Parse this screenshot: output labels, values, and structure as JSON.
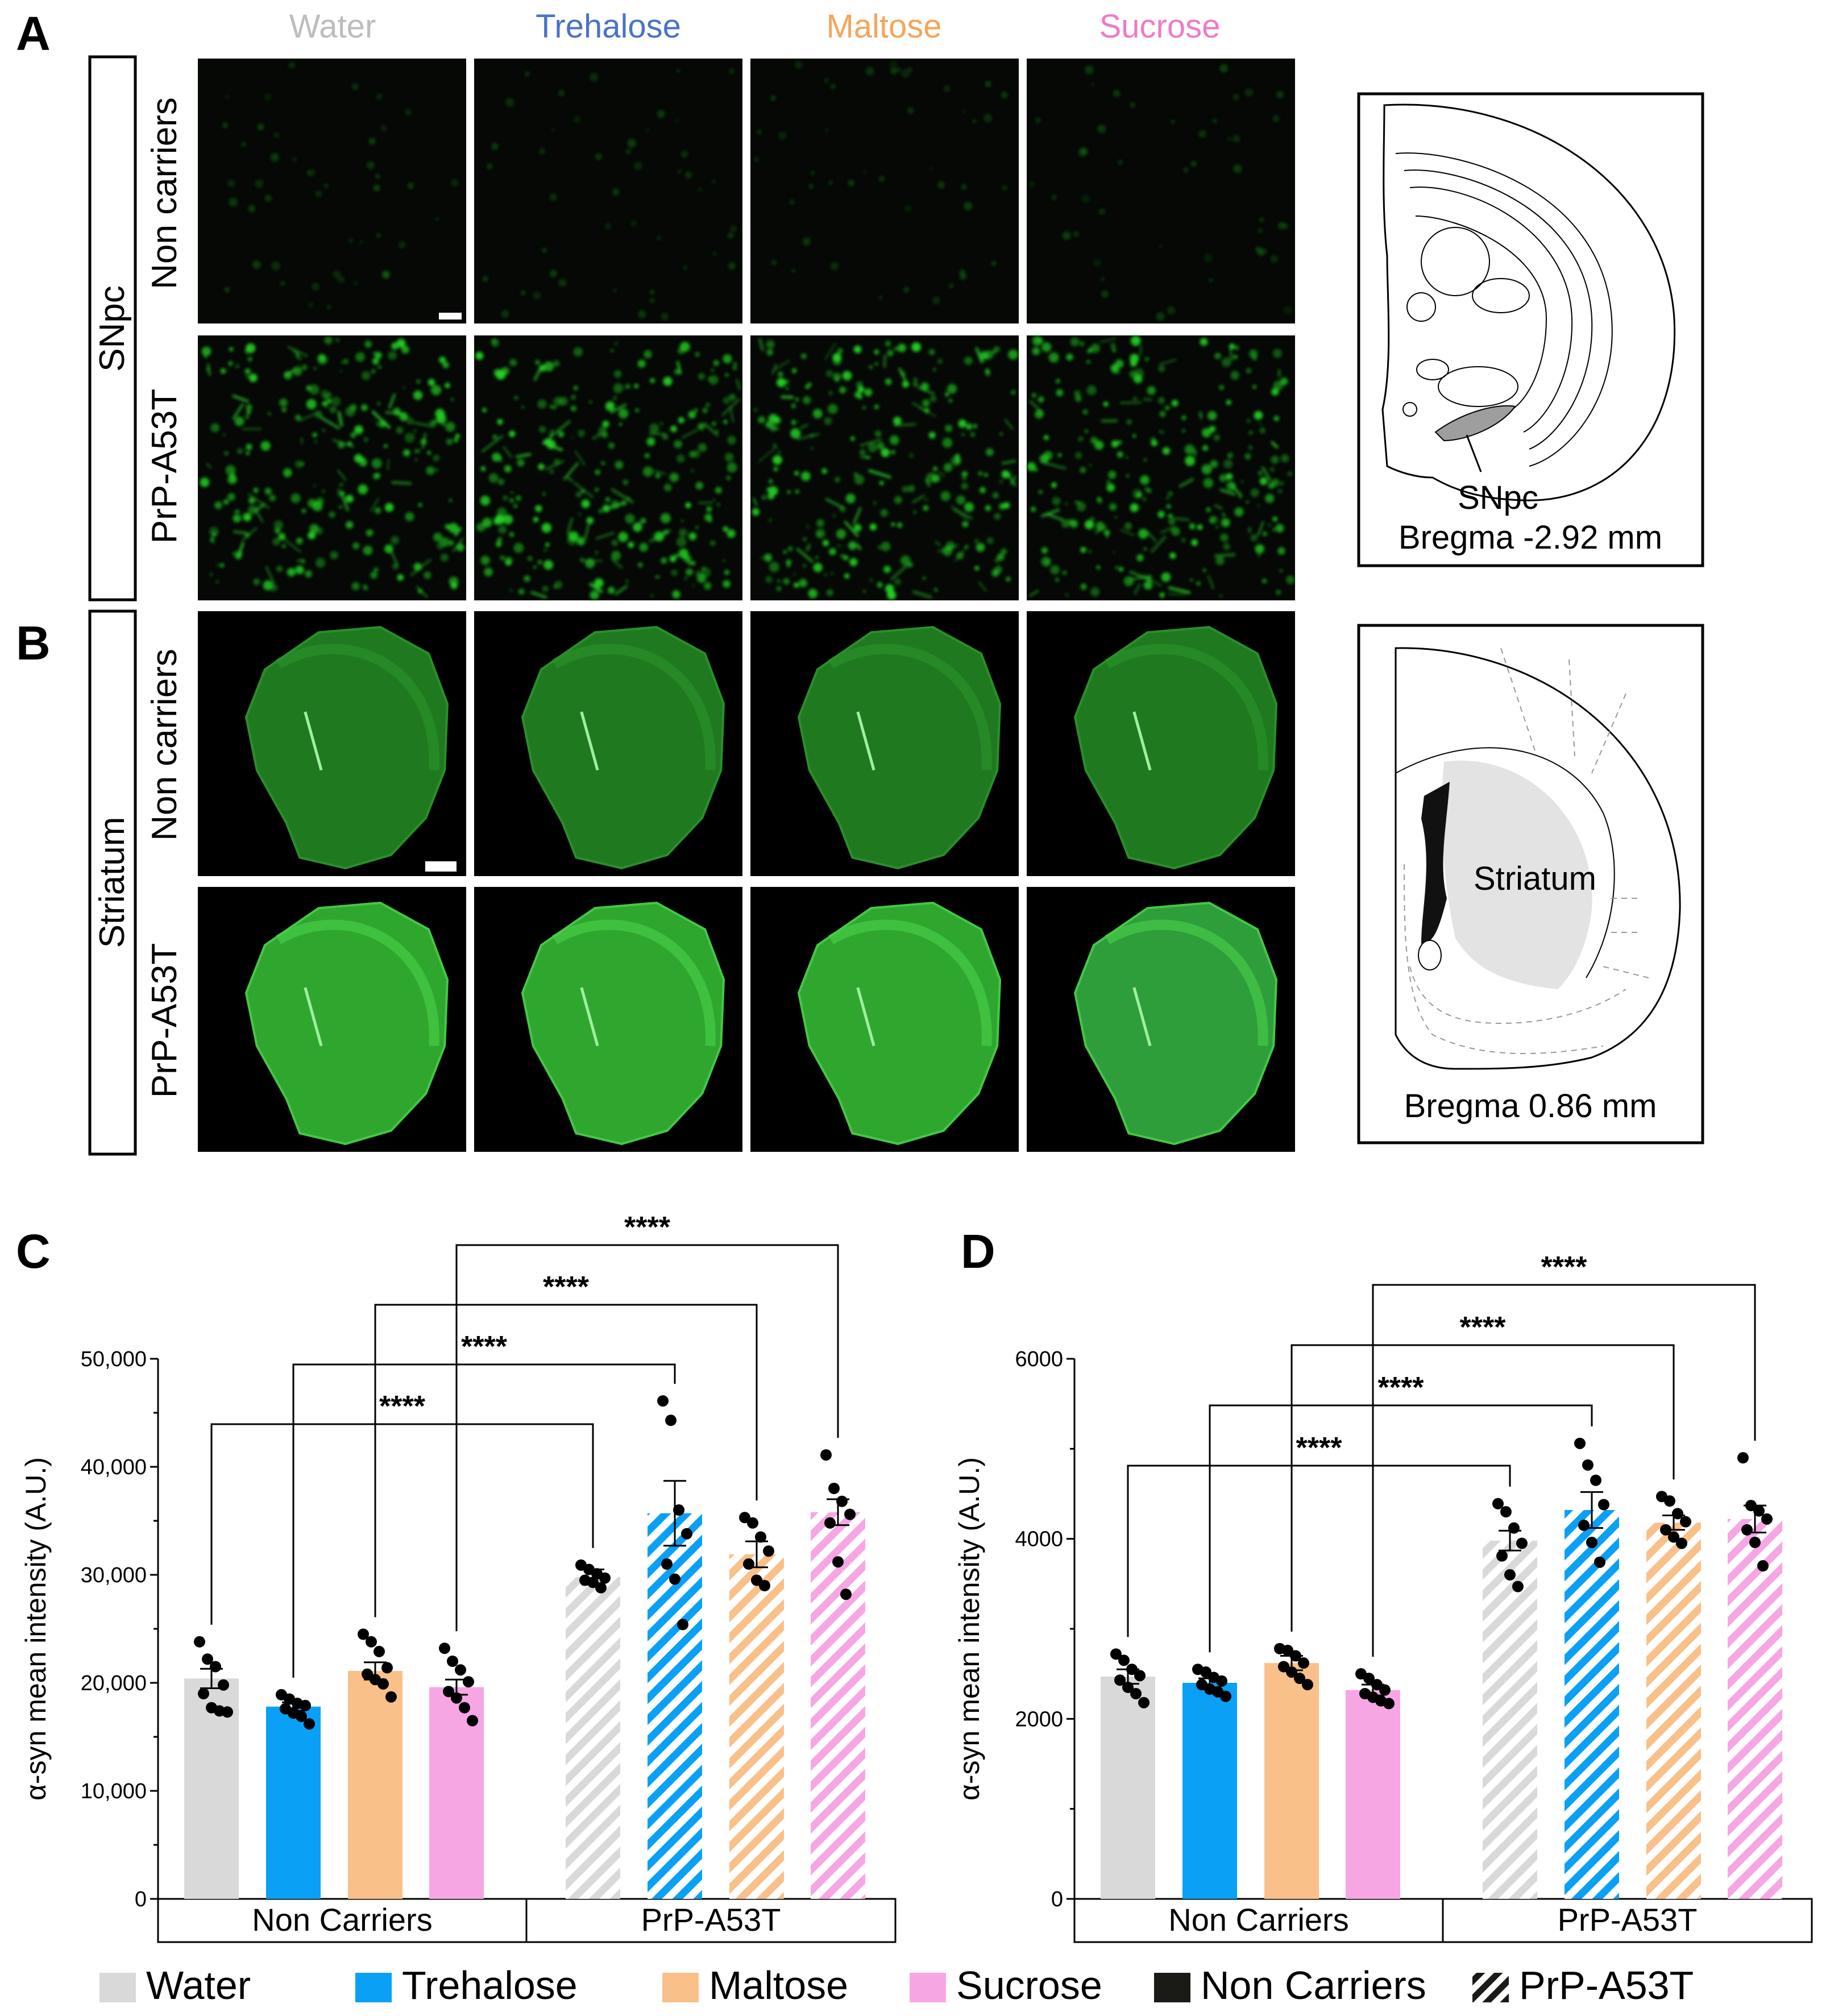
{
  "panel_labels": {
    "a": "A",
    "b": "B",
    "c": "C",
    "d": "D"
  },
  "treatments": [
    {
      "name": "Water",
      "color": "#bdbdbd"
    },
    {
      "name": "Trehalose",
      "color": "#4a72c8"
    },
    {
      "name": "Maltose",
      "color": "#f5a55a"
    },
    {
      "name": "Sucrose",
      "color": "#ef7ac8"
    }
  ],
  "panel_a": {
    "region": "SNpc",
    "rows": [
      "Non carriers",
      "PrP-A53T"
    ],
    "atlas_label": "SNpc",
    "atlas_caption": "Bregma -2.92 mm"
  },
  "panel_b": {
    "region": "Striatum",
    "rows": [
      "Non carriers",
      "PrP-A53T"
    ],
    "atlas_label": "Striatum",
    "atlas_caption": "Bregma 0.86 mm"
  },
  "legend": {
    "items": [
      {
        "label": "Water",
        "color": "#d9d9d9",
        "pattern": "solid"
      },
      {
        "label": "Trehalose",
        "color": "#0aa0f6",
        "pattern": "solid"
      },
      {
        "label": "Maltose",
        "color": "#f9c089",
        "pattern": "solid"
      },
      {
        "label": "Sucrose",
        "color": "#f7a6e4",
        "pattern": "solid"
      },
      {
        "label": "Non Carriers",
        "color": "#1a1a17",
        "pattern": "solid"
      },
      {
        "label": "PrP-A53T",
        "color": "#1a1a17",
        "pattern": "hatch"
      }
    ]
  },
  "chart_data": [
    {
      "type": "bar",
      "panel": "C",
      "ylabel": "α-syn mean intensity (A.U.)",
      "ylim": [
        0,
        50000
      ],
      "yticks": [
        "0",
        "10,000",
        "20,000",
        "30,000",
        "40,000",
        "50,000"
      ],
      "ytick_values": [
        0,
        10000,
        20000,
        30000,
        40000,
        50000
      ],
      "groups": [
        "Non Carriers",
        "PrP-A53T"
      ],
      "categories": [
        "Water",
        "Trehalose",
        "Maltose",
        "Sucrose"
      ],
      "series": [
        {
          "name": "Non Carriers",
          "values": [
            20400,
            17800,
            21100,
            19600
          ],
          "sem": [
            900,
            400,
            800,
            700
          ],
          "points": [
            [
              23800,
              22200,
              21500,
              19800,
              19000,
              17700,
              17400,
              17300
            ],
            [
              18900,
              18500,
              18100,
              17900,
              17600,
              17200,
              16900,
              16200
            ],
            [
              24500,
              23800,
              22900,
              21400,
              20800,
              20300,
              19900,
              18700
            ],
            [
              23200,
              22000,
              21200,
              20100,
              19200,
              18600,
              17700,
              16500
            ]
          ]
        },
        {
          "name": "PrP-A53T",
          "values": [
            29800,
            35700,
            31900,
            35800
          ],
          "sem": [
            700,
            3000,
            1200,
            1200
          ],
          "points": [
            [
              30900,
              30500,
              30100,
              29700,
              29500,
              29300,
              28800
            ],
            [
              46100,
              44300,
              36000,
              33800,
              31000,
              29600,
              25400
            ],
            [
              35300,
              34800,
              33500,
              32200,
              31000,
              29500,
              29000
            ],
            [
              41100,
              38000,
              36800,
              35600,
              34800,
              31200,
              28200
            ]
          ]
        }
      ],
      "significance": [
        {
          "pair": [
            "Water",
            "Water"
          ],
          "label": "****"
        },
        {
          "pair": [
            "Trehalose",
            "Trehalose"
          ],
          "label": "****"
        },
        {
          "pair": [
            "Maltose",
            "Maltose"
          ],
          "label": "****"
        },
        {
          "pair": [
            "Sucrose",
            "Sucrose"
          ],
          "label": "****"
        }
      ]
    },
    {
      "type": "bar",
      "panel": "D",
      "ylabel": "α-syn mean intensity (A.U.)",
      "ylim": [
        0,
        6000
      ],
      "yticks": [
        "0",
        "2000",
        "4000",
        "6000"
      ],
      "ytick_values": [
        0,
        2000,
        4000,
        6000
      ],
      "groups": [
        "Non Carriers",
        "PrP-A53T"
      ],
      "categories": [
        "Water",
        "Trehalose",
        "Maltose",
        "Sucrose"
      ],
      "series": [
        {
          "name": "Non Carriers",
          "values": [
            2470,
            2400,
            2620,
            2320
          ],
          "sem": [
            80,
            50,
            80,
            60
          ],
          "points": [
            [
              2720,
              2650,
              2550,
              2480,
              2430,
              2350,
              2280,
              2180
            ],
            [
              2550,
              2520,
              2460,
              2420,
              2380,
              2330,
              2300,
              2250
            ],
            [
              2780,
              2760,
              2700,
              2620,
              2580,
              2520,
              2450,
              2380
            ],
            [
              2500,
              2450,
              2380,
              2320,
              2280,
              2240,
              2200,
              2170
            ]
          ]
        },
        {
          "name": "PrP-A53T",
          "values": [
            3980,
            4320,
            4180,
            4220
          ],
          "sem": [
            110,
            200,
            80,
            150
          ],
          "points": [
            [
              4390,
              4300,
              4120,
              3950,
              3810,
              3600,
              3470
            ],
            [
              5060,
              4820,
              4650,
              4380,
              4150,
              3960,
              3740
            ],
            [
              4470,
              4420,
              4280,
              4190,
              4100,
              4020,
              3950
            ],
            [
              4900,
              4370,
              4310,
              4220,
              4100,
              3960,
              3700
            ]
          ]
        }
      ],
      "significance": [
        {
          "pair": [
            "Water",
            "Water"
          ],
          "label": "****"
        },
        {
          "pair": [
            "Trehalose",
            "Trehalose"
          ],
          "label": "****"
        },
        {
          "pair": [
            "Maltose",
            "Maltose"
          ],
          "label": "****"
        },
        {
          "pair": [
            "Sucrose",
            "Sucrose"
          ],
          "label": "****"
        }
      ]
    }
  ]
}
